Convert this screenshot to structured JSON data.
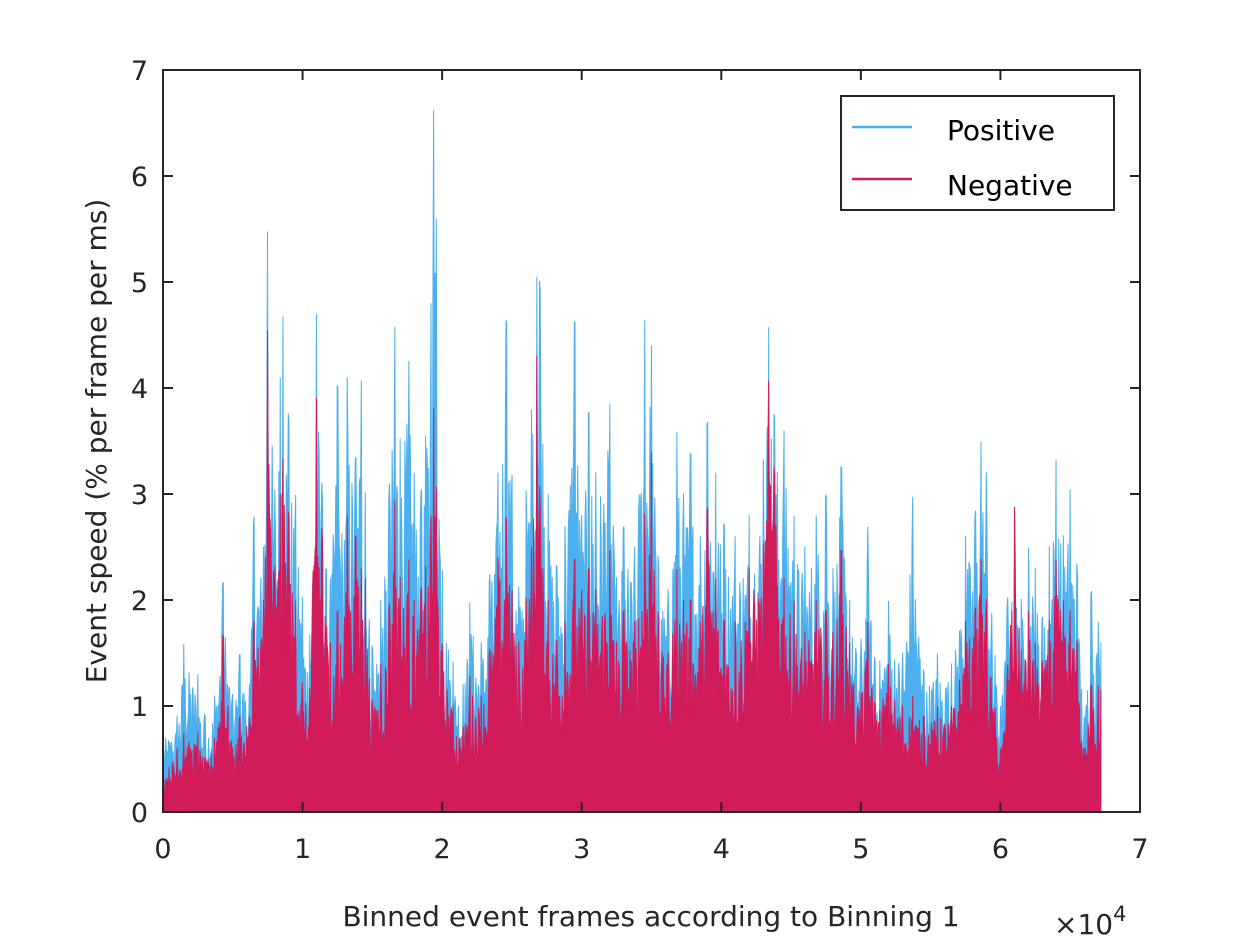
{
  "chart_data": {
    "type": "area",
    "xlabel": "Binned event frames according to Binning 1",
    "ylabel": "Event speed (% per frame per ms)",
    "x_exponent_label": "×10",
    "x_exponent_power": "4",
    "xlim": [
      0,
      7
    ],
    "ylim": [
      0,
      7
    ],
    "x_ticks": [
      "0",
      "1",
      "2",
      "3",
      "4",
      "5",
      "6",
      "7"
    ],
    "y_ticks": [
      "0",
      "1",
      "2",
      "3",
      "4",
      "5",
      "6",
      "7"
    ],
    "grid": false,
    "legend_position": "top-right",
    "x_end": 6.72,
    "series": [
      {
        "name": "Positive",
        "color": "#4DB0EE",
        "peaks": [
          [
            0.0,
            0.75
          ],
          [
            0.1,
            0.9
          ],
          [
            0.15,
            1.6
          ],
          [
            0.25,
            1.3
          ],
          [
            0.3,
            0.9
          ],
          [
            0.37,
            1.1
          ],
          [
            0.43,
            2.2
          ],
          [
            0.5,
            1.1
          ],
          [
            0.55,
            1.5
          ],
          [
            0.62,
            1.2
          ],
          [
            0.65,
            2.8
          ],
          [
            0.72,
            2.5
          ],
          [
            0.75,
            5.6
          ],
          [
            0.8,
            3.0
          ],
          [
            0.84,
            4.1
          ],
          [
            0.86,
            4.7
          ],
          [
            0.9,
            3.7
          ],
          [
            0.95,
            3.0
          ],
          [
            1.0,
            2.0
          ],
          [
            1.05,
            1.6
          ],
          [
            1.1,
            4.75
          ],
          [
            1.14,
            3.0
          ],
          [
            1.2,
            2.2
          ],
          [
            1.25,
            4.1
          ],
          [
            1.3,
            2.5
          ],
          [
            1.32,
            4.1
          ],
          [
            1.38,
            3.3
          ],
          [
            1.42,
            4.1
          ],
          [
            1.45,
            3.0
          ],
          [
            1.5,
            1.5
          ],
          [
            1.56,
            2.0
          ],
          [
            1.62,
            3.0
          ],
          [
            1.66,
            4.6
          ],
          [
            1.7,
            3.5
          ],
          [
            1.76,
            4.3
          ],
          [
            1.8,
            3.2
          ],
          [
            1.85,
            3.0
          ],
          [
            1.88,
            3.5
          ],
          [
            1.92,
            4.8
          ],
          [
            1.94,
            6.7
          ],
          [
            1.96,
            5.5
          ],
          [
            2.0,
            2.3
          ],
          [
            2.08,
            1.4
          ],
          [
            2.15,
            1.2
          ],
          [
            2.2,
            2.0
          ],
          [
            2.28,
            1.6
          ],
          [
            2.34,
            2.2
          ],
          [
            2.4,
            3.2
          ],
          [
            2.46,
            4.7
          ],
          [
            2.5,
            3.2
          ],
          [
            2.55,
            2.1
          ],
          [
            2.6,
            3.0
          ],
          [
            2.64,
            3.8
          ],
          [
            2.68,
            5.1
          ],
          [
            2.7,
            5.0
          ],
          [
            2.76,
            3.0
          ],
          [
            2.82,
            2.3
          ],
          [
            2.88,
            2.7
          ],
          [
            2.95,
            4.7
          ],
          [
            3.0,
            2.8
          ],
          [
            3.05,
            3.8
          ],
          [
            3.1,
            3.2
          ],
          [
            3.2,
            3.9
          ],
          [
            3.25,
            2.2
          ],
          [
            3.3,
            2.7
          ],
          [
            3.38,
            2.5
          ],
          [
            3.45,
            4.65
          ],
          [
            3.5,
            4.4
          ],
          [
            3.55,
            2.3
          ],
          [
            3.62,
            2.1
          ],
          [
            3.68,
            3.6
          ],
          [
            3.73,
            3.0
          ],
          [
            3.78,
            3.4
          ],
          [
            3.85,
            2.6
          ],
          [
            3.9,
            3.7
          ],
          [
            3.96,
            3.2
          ],
          [
            4.02,
            2.7
          ],
          [
            4.1,
            2.6
          ],
          [
            4.2,
            2.8
          ],
          [
            4.3,
            3.3
          ],
          [
            4.34,
            4.6
          ],
          [
            4.38,
            3.7
          ],
          [
            4.45,
            3.6
          ],
          [
            4.52,
            2.8
          ],
          [
            4.6,
            2.5
          ],
          [
            4.68,
            2.8
          ],
          [
            4.75,
            3.0
          ],
          [
            4.8,
            2.3
          ],
          [
            4.86,
            3.3
          ],
          [
            4.92,
            2.0
          ],
          [
            5.0,
            1.6
          ],
          [
            5.05,
            2.7
          ],
          [
            5.1,
            1.4
          ],
          [
            5.2,
            2.0
          ],
          [
            5.3,
            1.5
          ],
          [
            5.37,
            3.0
          ],
          [
            5.45,
            1.3
          ],
          [
            5.55,
            1.5
          ],
          [
            5.65,
            1.4
          ],
          [
            5.75,
            2.6
          ],
          [
            5.82,
            2.8
          ],
          [
            5.86,
            3.5
          ],
          [
            5.9,
            3.2
          ],
          [
            5.96,
            1.5
          ],
          [
            6.0,
            1.0
          ],
          [
            6.05,
            2.0
          ],
          [
            6.1,
            2.4
          ],
          [
            6.15,
            2.0
          ],
          [
            6.2,
            2.5
          ],
          [
            6.25,
            2.3
          ],
          [
            6.3,
            1.8
          ],
          [
            6.35,
            2.5
          ],
          [
            6.4,
            3.35
          ],
          [
            6.45,
            2.6
          ],
          [
            6.5,
            3.05
          ],
          [
            6.55,
            2.3
          ],
          [
            6.6,
            0.9
          ],
          [
            6.65,
            2.1
          ],
          [
            6.7,
            1.8
          ],
          [
            6.72,
            1.6
          ]
        ]
      },
      {
        "name": "Negative",
        "color": "#D11B5A",
        "peaks": [
          [
            0.0,
            0.4
          ],
          [
            0.1,
            0.6
          ],
          [
            0.15,
            0.75
          ],
          [
            0.25,
            0.75
          ],
          [
            0.3,
            0.5
          ],
          [
            0.37,
            0.7
          ],
          [
            0.43,
            1.7
          ],
          [
            0.5,
            0.6
          ],
          [
            0.55,
            0.9
          ],
          [
            0.62,
            0.9
          ],
          [
            0.65,
            1.8
          ],
          [
            0.72,
            2.0
          ],
          [
            0.75,
            4.65
          ],
          [
            0.8,
            2.3
          ],
          [
            0.84,
            3.0
          ],
          [
            0.86,
            3.35
          ],
          [
            0.9,
            2.8
          ],
          [
            0.95,
            2.0
          ],
          [
            1.0,
            1.2
          ],
          [
            1.05,
            1.1
          ],
          [
            1.1,
            3.95
          ],
          [
            1.14,
            2.6
          ],
          [
            1.2,
            1.6
          ],
          [
            1.25,
            1.9
          ],
          [
            1.3,
            1.8
          ],
          [
            1.32,
            2.8
          ],
          [
            1.38,
            2.6
          ],
          [
            1.42,
            2.3
          ],
          [
            1.45,
            2.2
          ],
          [
            1.5,
            1.0
          ],
          [
            1.56,
            1.4
          ],
          [
            1.62,
            1.9
          ],
          [
            1.66,
            2.95
          ],
          [
            1.7,
            2.2
          ],
          [
            1.76,
            2.4
          ],
          [
            1.8,
            2.0
          ],
          [
            1.85,
            2.1
          ],
          [
            1.88,
            2.3
          ],
          [
            1.92,
            2.8
          ],
          [
            1.94,
            3.85
          ],
          [
            1.96,
            3.0
          ],
          [
            2.0,
            1.6
          ],
          [
            2.08,
            1.0
          ],
          [
            2.15,
            0.8
          ],
          [
            2.2,
            1.3
          ],
          [
            2.28,
            1.1
          ],
          [
            2.34,
            1.5
          ],
          [
            2.4,
            2.4
          ],
          [
            2.46,
            2.8
          ],
          [
            2.5,
            2.1
          ],
          [
            2.55,
            1.6
          ],
          [
            2.6,
            2.0
          ],
          [
            2.64,
            2.5
          ],
          [
            2.68,
            4.38
          ],
          [
            2.7,
            2.9
          ],
          [
            2.76,
            2.0
          ],
          [
            2.82,
            1.6
          ],
          [
            2.88,
            1.8
          ],
          [
            2.95,
            2.4
          ],
          [
            3.0,
            2.1
          ],
          [
            3.05,
            2.3
          ],
          [
            3.1,
            2.1
          ],
          [
            3.2,
            2.5
          ],
          [
            3.25,
            1.6
          ],
          [
            3.3,
            1.9
          ],
          [
            3.38,
            1.8
          ],
          [
            3.45,
            2.8
          ],
          [
            3.5,
            3.4
          ],
          [
            3.55,
            1.8
          ],
          [
            3.62,
            1.5
          ],
          [
            3.68,
            2.3
          ],
          [
            3.73,
            2.0
          ],
          [
            3.78,
            2.0
          ],
          [
            3.85,
            1.8
          ],
          [
            3.9,
            2.9
          ],
          [
            3.96,
            2.2
          ],
          [
            4.02,
            1.8
          ],
          [
            4.1,
            1.8
          ],
          [
            4.2,
            2.3
          ],
          [
            4.3,
            2.5
          ],
          [
            4.34,
            4.1
          ],
          [
            4.38,
            3.2
          ],
          [
            4.45,
            2.2
          ],
          [
            4.52,
            2.0
          ],
          [
            4.6,
            1.7
          ],
          [
            4.68,
            2.0
          ],
          [
            4.75,
            1.9
          ],
          [
            4.8,
            1.7
          ],
          [
            4.86,
            2.5
          ],
          [
            4.92,
            1.6
          ],
          [
            5.0,
            1.1
          ],
          [
            5.05,
            1.8
          ],
          [
            5.1,
            1.0
          ],
          [
            5.2,
            1.4
          ],
          [
            5.3,
            1.0
          ],
          [
            5.37,
            1.1
          ],
          [
            5.45,
            0.9
          ],
          [
            5.55,
            1.0
          ],
          [
            5.65,
            1.0
          ],
          [
            5.75,
            1.8
          ],
          [
            5.82,
            1.9
          ],
          [
            5.86,
            2.4
          ],
          [
            5.9,
            2.0
          ],
          [
            5.96,
            1.0
          ],
          [
            6.0,
            0.6
          ],
          [
            6.05,
            1.3
          ],
          [
            6.1,
            2.9
          ],
          [
            6.15,
            1.5
          ],
          [
            6.2,
            1.9
          ],
          [
            6.25,
            1.6
          ],
          [
            6.3,
            1.4
          ],
          [
            6.35,
            1.8
          ],
          [
            6.4,
            2.4
          ],
          [
            6.45,
            2.0
          ],
          [
            6.5,
            1.9
          ],
          [
            6.55,
            1.6
          ],
          [
            6.6,
            0.6
          ],
          [
            6.65,
            1.2
          ],
          [
            6.7,
            1.2
          ],
          [
            6.72,
            1.15
          ]
        ]
      }
    ]
  }
}
